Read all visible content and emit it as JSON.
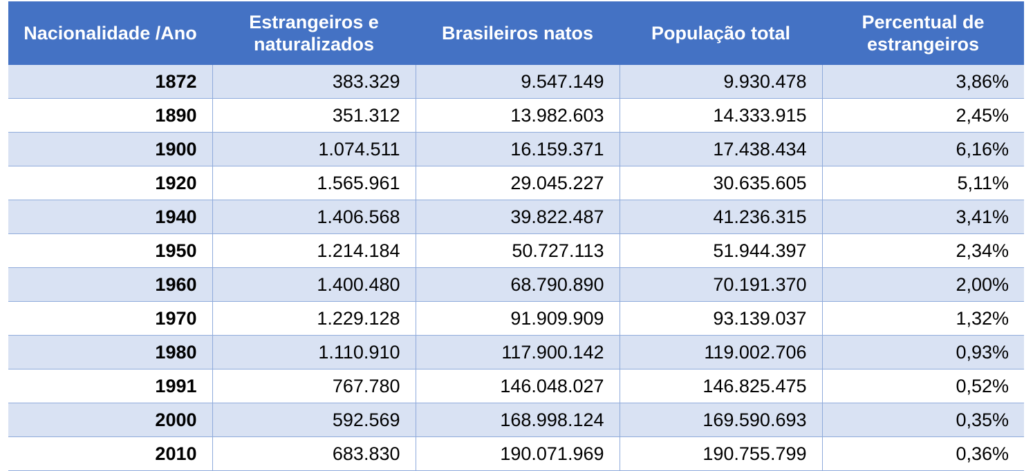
{
  "table": {
    "headers": [
      "Nacionalidade /Ano",
      "Estrangeiros e naturalizados",
      "Brasileiros natos",
      "População total",
      "Percentual de estrangeiros"
    ],
    "rows": [
      [
        "1872",
        "383.329",
        "9.547.149",
        "9.930.478",
        "3,86%"
      ],
      [
        "1890",
        "351.312",
        "13.982.603",
        "14.333.915",
        "2,45%"
      ],
      [
        "1900",
        "1.074.511",
        "16.159.371",
        "17.438.434",
        "6,16%"
      ],
      [
        "1920",
        "1.565.961",
        "29.045.227",
        "30.635.605",
        "5,11%"
      ],
      [
        "1940",
        "1.406.568",
        "39.822.487",
        "41.236.315",
        "3,41%"
      ],
      [
        "1950",
        "1.214.184",
        "50.727.113",
        "51.944.397",
        "2,34%"
      ],
      [
        "1960",
        "1.400.480",
        "68.790.890",
        "70.191.370",
        "2,00%"
      ],
      [
        "1970",
        "1.229.128",
        "91.909.909",
        "93.139.037",
        "1,32%"
      ],
      [
        "1980",
        "1.110.910",
        "117.900.142",
        "119.002.706",
        "0,93%"
      ],
      [
        "1991",
        "767.780",
        "146.048.027",
        "146.825.475",
        "0,52%"
      ],
      [
        "2000",
        "592.569",
        "168.998.124",
        "169.590.693",
        "0,35%"
      ],
      [
        "2010",
        "683.830",
        "190.071.969",
        "190.755.799",
        "0,36%"
      ]
    ]
  },
  "colors": {
    "header_bg": "#4472c4",
    "band_bg": "#d9e2f3",
    "border": "#8eaadb"
  }
}
